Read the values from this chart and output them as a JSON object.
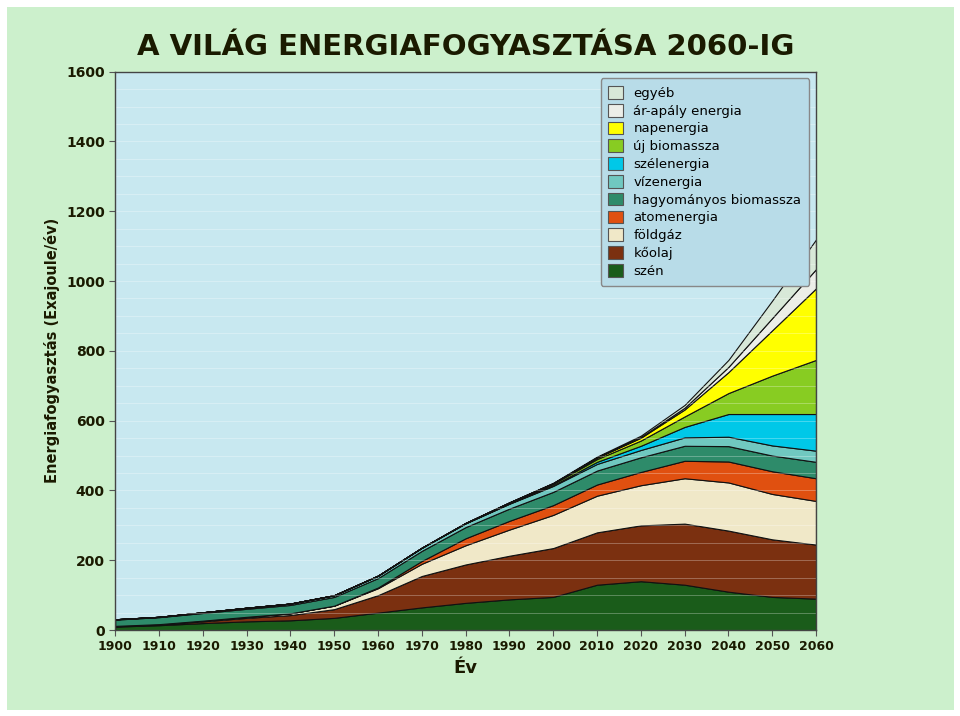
{
  "title": "A VILÁG ENERGIAFOGYASZTÁSA 2060-IG",
  "xlabel": "Év",
  "ylabel": "Energiafogyasztás (Exajoule/év)",
  "years": [
    1900,
    1910,
    1920,
    1930,
    1940,
    1950,
    1960,
    1970,
    1980,
    1990,
    2000,
    2010,
    2020,
    2030,
    2040,
    2050,
    2060
  ],
  "series": {
    "szén": [
      10,
      14,
      20,
      25,
      28,
      35,
      50,
      65,
      78,
      88,
      95,
      130,
      140,
      130,
      110,
      95,
      90
    ],
    "kőolaj": [
      1,
      2,
      5,
      10,
      15,
      25,
      50,
      90,
      110,
      125,
      140,
      150,
      160,
      175,
      175,
      165,
      155
    ],
    "földgáz": [
      1,
      1,
      2,
      3,
      5,
      10,
      20,
      35,
      55,
      75,
      95,
      105,
      115,
      130,
      138,
      130,
      125
    ],
    "atomenergia": [
      0,
      0,
      0,
      0,
      0,
      0,
      2,
      8,
      20,
      25,
      28,
      32,
      38,
      50,
      60,
      65,
      65
    ],
    "hagyományos biomassza": [
      18,
      20,
      22,
      23,
      24,
      25,
      27,
      29,
      32,
      35,
      38,
      40,
      42,
      43,
      44,
      45,
      47
    ],
    "vízenergia": [
      1,
      1,
      2,
      3,
      4,
      5,
      7,
      9,
      11,
      14,
      17,
      19,
      21,
      24,
      27,
      29,
      32
    ],
    "szélenergia": [
      0,
      0,
      0,
      0,
      0,
      0,
      0,
      0,
      0,
      1,
      2,
      6,
      12,
      30,
      65,
      90,
      105
    ],
    "új biomassza": [
      0,
      0,
      0,
      0,
      0,
      0,
      0,
      0,
      1,
      2,
      4,
      8,
      15,
      30,
      60,
      110,
      155
    ],
    "napenergia": [
      0,
      0,
      0,
      0,
      0,
      0,
      0,
      0,
      0,
      1,
      2,
      4,
      8,
      20,
      60,
      130,
      205
    ],
    "ár-apály energia": [
      0,
      0,
      0,
      0,
      0,
      0,
      0,
      0,
      0,
      0,
      0,
      1,
      2,
      5,
      15,
      35,
      55
    ],
    "egyéb": [
      0,
      0,
      0,
      0,
      0,
      0,
      0,
      0,
      0,
      0,
      1,
      2,
      4,
      8,
      20,
      50,
      85
    ]
  },
  "colors": {
    "szén": "#1a5c1a",
    "kőolaj": "#7b3010",
    "földgáz": "#f0e8c8",
    "atomenergia": "#e05010",
    "hagyományos biomassza": "#2e8b6a",
    "vízenergia": "#70c8c0",
    "szélenergia": "#00c8e8",
    "új biomassza": "#88cc22",
    "napenergia": "#ffff00",
    "ár-apály energia": "#eceee8",
    "egyéb": "#d8e8d8"
  },
  "legend_order": [
    "egyéb",
    "ár-apály energia",
    "napenergia",
    "új biomassza",
    "szélenergia",
    "vízenergia",
    "hagyományos biomassza",
    "atomenergia",
    "földgáz",
    "kőolaj",
    "szén"
  ],
  "stack_order": [
    "szén",
    "kőolaj",
    "földgáz",
    "atomenergia",
    "hagyományos biomassza",
    "vízenergia",
    "szélenergia",
    "új biomassza",
    "napenergia",
    "ár-apály energia",
    "egyéb"
  ],
  "ylim": [
    0,
    1600
  ],
  "yticks": [
    0,
    200,
    400,
    600,
    800,
    1000,
    1200,
    1400,
    1600
  ],
  "bg_color": "#ccf0cc",
  "plot_bg_color": "#c8e8f0",
  "legend_bg_color": "#b8dce8",
  "outer_border_color": "#228822",
  "title_color": "#1a1a00",
  "title_fontsize": 21
}
